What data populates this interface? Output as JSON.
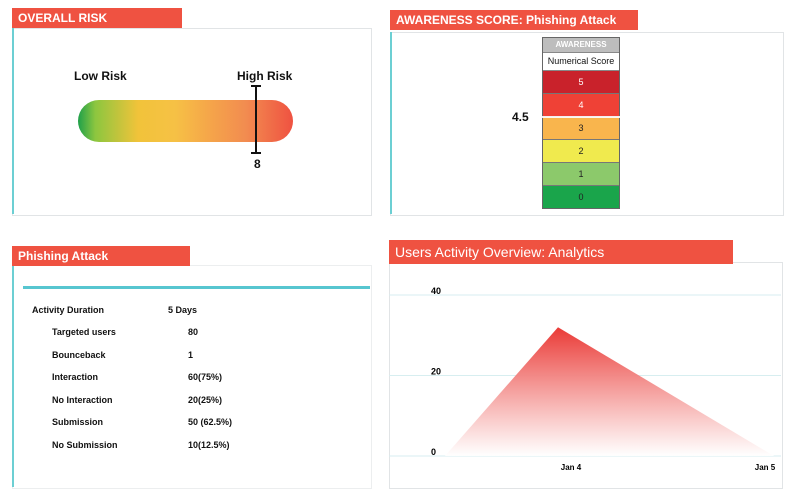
{
  "overall_risk": {
    "title": "OVERALL RISK",
    "low_label": "Low Risk",
    "high_label": "High Risk",
    "value": "8",
    "level_fraction": 0.83
  },
  "awareness": {
    "title": "AWARENESS SCORE: Phishing Attack",
    "score": "4.5",
    "header": "AWARENESS",
    "subheader": "Numerical Score",
    "rows": [
      {
        "label": "5",
        "color": "#c9222b",
        "text_color": "#ffffff"
      },
      {
        "label": "4",
        "color": "#ef4136",
        "text_color": "#ffffff"
      },
      {
        "label": "3",
        "color": "#f9b54d",
        "text_color": "#222222"
      },
      {
        "label": "2",
        "color": "#f0ea4e",
        "text_color": "#222222"
      },
      {
        "label": "1",
        "color": "#8cc96b",
        "text_color": "#222222"
      },
      {
        "label": "0",
        "color": "#1aa54b",
        "text_color": "#222222"
      }
    ]
  },
  "phishing": {
    "title": "Phishing Attack",
    "duration_label": "Activity Duration",
    "duration_value": "5 Days",
    "rows": [
      {
        "label": "Targeted users",
        "value": "80"
      },
      {
        "label": "Bounceback",
        "value": "1"
      },
      {
        "label": "Interaction",
        "value": "60(75%)"
      },
      {
        "label": "No Interaction",
        "value": "20(25%)"
      },
      {
        "label": "Submission",
        "value": "50 (62.5%)"
      },
      {
        "label": "No Submission",
        "value": "10(12.5%)"
      }
    ]
  },
  "activity": {
    "title": "Users Activity Overview: Analytics"
  },
  "chart_data": {
    "type": "area",
    "title": "Users Activity Overview: Analytics",
    "xlabel": "",
    "ylabel": "",
    "x": [
      "",
      "Jan 4",
      "Jan 5"
    ],
    "x_ticks": [
      "Jan 4",
      "Jan 5"
    ],
    "values": [
      0,
      32,
      0
    ],
    "y_ticks": [
      0,
      20,
      40
    ],
    "ylim": [
      0,
      40
    ],
    "grid": true,
    "legend": "none",
    "colors": {
      "fill_top": "#ea3a36",
      "fill_bottom": "#ffffff"
    }
  },
  "colors": {
    "title_bar": "#ef5241",
    "accent_teal": "#57c6d0",
    "panel_border": "#e1e4e6"
  }
}
